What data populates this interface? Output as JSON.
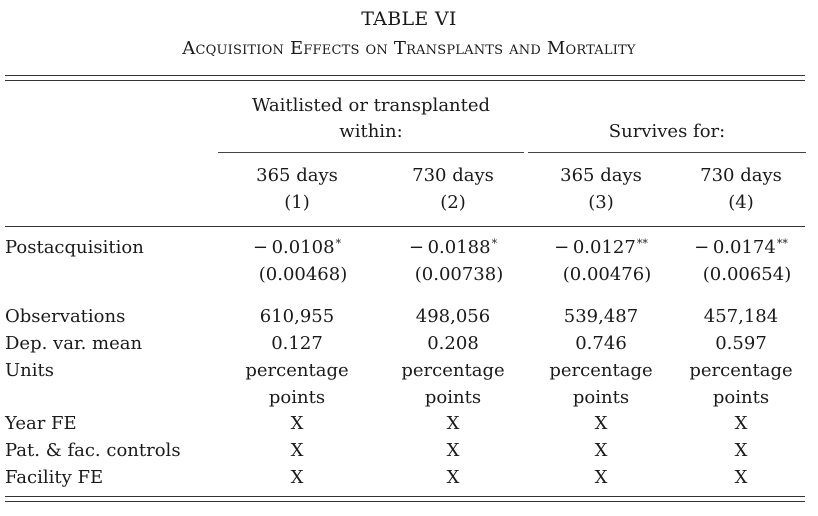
{
  "title": "TABLE VI",
  "subtitle": "Acquisition Effects on Transplants and Mortality",
  "group_headers": {
    "waitlisted_line1": "Waitlisted or transplanted",
    "waitlisted_line2": "within:",
    "survives": "Survives for:"
  },
  "columns": [
    {
      "days": "365 days",
      "num": "(1)"
    },
    {
      "days": "730 days",
      "num": "(2)"
    },
    {
      "days": "365 days",
      "num": "(3)"
    },
    {
      "days": "730 days",
      "num": "(4)"
    }
  ],
  "postacquisition": {
    "label": "Postacquisition",
    "coefs": [
      {
        "value": "− 0.0108",
        "stars": "*"
      },
      {
        "value": "− 0.0188",
        "stars": "*"
      },
      {
        "value": "− 0.0127",
        "stars": "**"
      },
      {
        "value": "− 0.0174",
        "stars": "**"
      }
    ],
    "ses": [
      "(0.00468)",
      "(0.00738)",
      "(0.00476)",
      "(0.00654)"
    ]
  },
  "observations": {
    "label": "Observations",
    "values": [
      "610,955",
      "498,056",
      "539,487",
      "457,184"
    ]
  },
  "depvar": {
    "label": "Dep. var. mean",
    "values": [
      "0.127",
      "0.208",
      "0.746",
      "0.597"
    ]
  },
  "units": {
    "label": "Units",
    "line1": [
      "percentage",
      "percentage",
      "percentage",
      "percentage"
    ],
    "line2": [
      "points",
      "points",
      "points",
      "points"
    ]
  },
  "year_fe": {
    "label": "Year FE",
    "values": [
      "X",
      "X",
      "X",
      "X"
    ]
  },
  "controls": {
    "label": "Pat. & fac. controls",
    "values": [
      "X",
      "X",
      "X",
      "X"
    ]
  },
  "facility_fe": {
    "label": "Facility FE",
    "values": [
      "X",
      "X",
      "X",
      "X"
    ]
  }
}
